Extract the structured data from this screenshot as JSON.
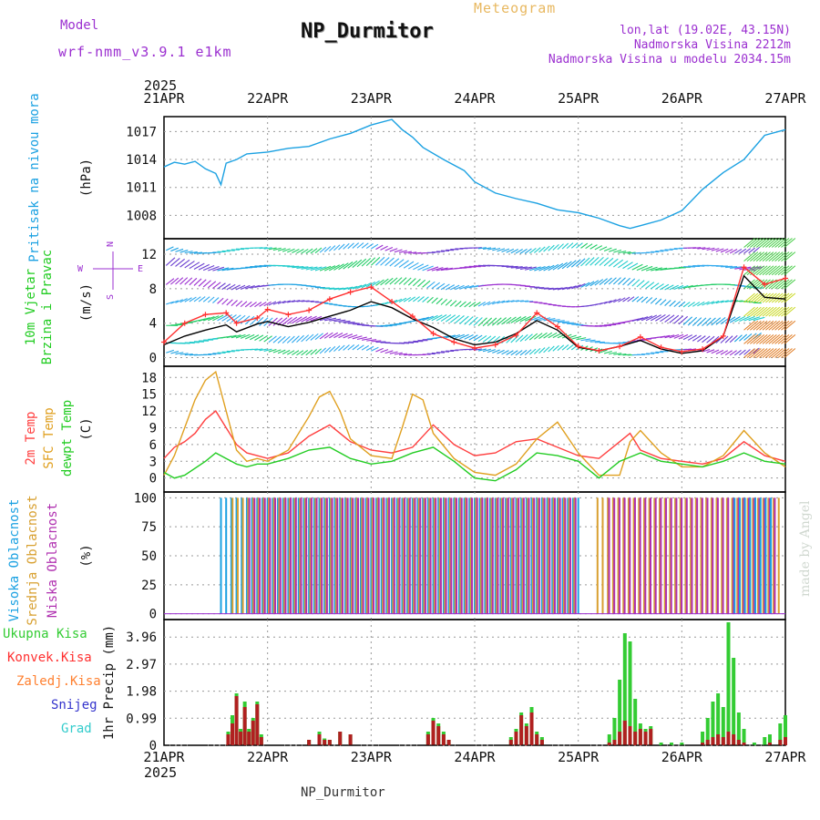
{
  "header": {
    "model_label": "Model",
    "model_value": "wrf-nmm_v3.9.1 e1km",
    "station": "NP_Durmitor",
    "meteogram": "Meteogram",
    "lonlat": "lon,lat (19.02E, 43.15N)",
    "elevation": "Nadmorska Visina 2212m",
    "elevation_model": "Nadmorska Visina u modelu 2034.15m"
  },
  "footer": {
    "station": "NP_Durmitor",
    "credit": "made by Angel"
  },
  "colors": {
    "pressure": "#1ba1e2",
    "wind_speed": "#000000",
    "gust": "#ff3030",
    "temp2m": "#ff4040",
    "sfc_temp": "#e0a020",
    "dewpt": "#22cc22",
    "cloud_high": "#1ba1e2",
    "cloud_mid": "#d8a030",
    "cloud_low": "#b030b0",
    "precip_total": "#33cc33",
    "precip_conv": "#b02020",
    "snow": "#3333cc",
    "hail": "#33cccc"
  },
  "chart_data": {
    "time_axis": {
      "year": "2025",
      "ticks": [
        "21APR",
        "22APR",
        "23APR",
        "24APR",
        "25APR",
        "26APR",
        "27APR"
      ],
      "days": 6
    },
    "panels": [
      {
        "id": "pressure",
        "type": "line",
        "ylabel": "Pritisak na nivou mora",
        "unit": "(hPa)",
        "ylim": [
          1005.5,
          1018.6
        ],
        "yticks": [
          1008,
          1011,
          1014,
          1017
        ],
        "series": [
          {
            "key": "pressure",
            "x": [
              0,
              0.1,
              0.2,
              0.3,
              0.4,
              0.5,
              0.55,
              0.6,
              0.7,
              0.8,
              1.0,
              1.2,
              1.4,
              1.6,
              1.8,
              2.0,
              2.2,
              2.3,
              2.4,
              2.5,
              2.7,
              2.9,
              3.0,
              3.2,
              3.4,
              3.6,
              3.8,
              4.0,
              4.2,
              4.4,
              4.5,
              4.6,
              4.8,
              5.0,
              5.2,
              5.4,
              5.6,
              5.8,
              6.0
            ],
            "y": [
              1013.2,
              1013.7,
              1013.5,
              1013.8,
              1013.0,
              1012.5,
              1011.3,
              1013.6,
              1014.0,
              1014.6,
              1014.8,
              1015.2,
              1015.4,
              1016.2,
              1016.8,
              1017.7,
              1018.3,
              1017.2,
              1016.4,
              1015.3,
              1014.0,
              1012.8,
              1011.6,
              1010.4,
              1009.8,
              1009.3,
              1008.6,
              1008.3,
              1007.7,
              1006.9,
              1006.6,
              1006.9,
              1007.5,
              1008.5,
              1010.8,
              1012.6,
              1014.0,
              1016.6,
              1017.2
            ]
          }
        ]
      },
      {
        "id": "wind",
        "type": "line",
        "ylabel": "10m Vjetar Brzina i Pravac",
        "unit": "(m/s)",
        "compass": [
          "N",
          "W",
          "E",
          "S"
        ],
        "ylim": [
          -1,
          13.8
        ],
        "yticks": [
          0,
          4,
          8,
          12
        ],
        "series": [
          {
            "key": "wind_speed",
            "x": [
              0,
              0.2,
              0.4,
              0.6,
              0.7,
              0.9,
              1.0,
              1.2,
              1.4,
              1.6,
              1.8,
              2.0,
              2.2,
              2.4,
              2.6,
              2.8,
              3.0,
              3.2,
              3.4,
              3.6,
              3.8,
              4.0,
              4.2,
              4.4,
              4.6,
              4.8,
              5.0,
              5.2,
              5.4,
              5.6,
              5.8,
              6.0
            ],
            "y": [
              1.5,
              2.5,
              3.2,
              3.8,
              3.0,
              3.9,
              4.2,
              3.6,
              4.1,
              4.8,
              5.5,
              6.5,
              5.8,
              4.5,
              3.5,
              2.2,
              1.5,
              1.8,
              2.8,
              4.3,
              3.2,
              1.2,
              0.8,
              1.3,
              2.0,
              1.0,
              0.5,
              0.8,
              2.5,
              9.5,
              7.0,
              6.8
            ]
          },
          {
            "key": "gust",
            "marker": "+",
            "x": [
              0,
              0.2,
              0.4,
              0.6,
              0.7,
              0.9,
              1.0,
              1.2,
              1.4,
              1.6,
              1.8,
              2.0,
              2.2,
              2.4,
              2.6,
              2.8,
              3.0,
              3.2,
              3.4,
              3.6,
              3.8,
              4.0,
              4.2,
              4.4,
              4.6,
              4.8,
              5.0,
              5.2,
              5.4,
              5.6,
              5.8,
              6.0
            ],
            "y": [
              1.8,
              4.0,
              5.0,
              5.2,
              4.0,
              4.6,
              5.6,
              5.0,
              5.5,
              6.8,
              7.6,
              8.2,
              6.5,
              4.8,
              2.8,
              1.8,
              1.1,
              1.5,
              2.6,
              5.2,
              3.6,
              1.3,
              0.8,
              1.3,
              2.4,
              1.2,
              0.7,
              1.0,
              2.5,
              10.5,
              8.5,
              9.2
            ]
          }
        ]
      },
      {
        "id": "temperature",
        "type": "line",
        "ylabel": "2m Temp",
        "ylabel2": "SFC Temp",
        "ylabel3": "dewpt Temp",
        "unit": "(C)",
        "ylim": [
          -2.5,
          20
        ],
        "yticks": [
          0,
          3,
          6,
          9,
          12,
          15,
          18
        ],
        "series": [
          {
            "key": "temp2m",
            "x": [
              0,
              0.1,
              0.2,
              0.3,
              0.4,
              0.5,
              0.6,
              0.7,
              0.8,
              0.9,
              1.0,
              1.2,
              1.4,
              1.6,
              1.8,
              2.0,
              2.2,
              2.4,
              2.5,
              2.6,
              2.8,
              3.0,
              3.2,
              3.4,
              3.6,
              3.8,
              4.0,
              4.2,
              4.4,
              4.5,
              4.6,
              4.8,
              5.0,
              5.2,
              5.4,
              5.6,
              5.8,
              6.0
            ],
            "y": [
              3.5,
              5.5,
              6.5,
              8.0,
              10.5,
              12.0,
              9.0,
              6.0,
              4.5,
              4.0,
              3.5,
              4.5,
              7.5,
              9.5,
              6.5,
              5.0,
              4.5,
              5.5,
              7.5,
              9.5,
              6.0,
              4.0,
              4.5,
              6.5,
              7.0,
              5.5,
              4.0,
              3.5,
              6.5,
              8.0,
              5.0,
              3.5,
              3.0,
              2.5,
              3.5,
              6.5,
              4.0,
              3.0
            ]
          },
          {
            "key": "sfc_temp",
            "x": [
              0,
              0.1,
              0.2,
              0.3,
              0.4,
              0.5,
              0.6,
              0.7,
              0.8,
              0.9,
              1.0,
              1.2,
              1.4,
              1.5,
              1.6,
              1.7,
              1.8,
              2.0,
              2.2,
              2.3,
              2.4,
              2.5,
              2.6,
              2.8,
              3.0,
              3.2,
              3.4,
              3.6,
              3.8,
              4.0,
              4.2,
              4.4,
              4.5,
              4.6,
              4.8,
              5.0,
              5.2,
              5.4,
              5.6,
              5.8,
              6.0
            ],
            "y": [
              0.5,
              4.0,
              9.0,
              14.0,
              17.5,
              19.0,
              12.0,
              5.0,
              3.0,
              3.5,
              3.0,
              5.0,
              11.0,
              14.5,
              15.5,
              12.0,
              7.0,
              4.0,
              3.5,
              9.0,
              15.0,
              14.0,
              8.0,
              3.5,
              1.0,
              0.5,
              2.5,
              7.0,
              10.0,
              4.5,
              0.5,
              0.5,
              6.5,
              8.5,
              4.5,
              2.0,
              2.0,
              4.0,
              8.5,
              4.5,
              2.0
            ]
          },
          {
            "key": "dewpt",
            "x": [
              0,
              0.1,
              0.2,
              0.4,
              0.5,
              0.6,
              0.7,
              0.8,
              0.9,
              1.0,
              1.2,
              1.4,
              1.6,
              1.8,
              2.0,
              2.2,
              2.4,
              2.6,
              2.8,
              3.0,
              3.2,
              3.4,
              3.6,
              3.8,
              4.0,
              4.2,
              4.4,
              4.6,
              4.8,
              5.0,
              5.2,
              5.4,
              5.6,
              5.8,
              6.0
            ],
            "y": [
              1.0,
              0.0,
              0.5,
              3.0,
              4.5,
              3.5,
              2.5,
              2.0,
              2.5,
              2.5,
              3.5,
              5.0,
              5.5,
              3.5,
              2.5,
              3.0,
              4.5,
              5.5,
              3.0,
              0.0,
              -0.5,
              1.5,
              4.5,
              4.0,
              3.0,
              0.0,
              3.0,
              4.5,
              3.0,
              2.5,
              2.0,
              3.0,
              4.5,
              3.0,
              2.5
            ]
          }
        ]
      },
      {
        "id": "clouds",
        "type": "bar",
        "ylabel": "Visoka Oblacnost",
        "ylabel2": "Srednja Oblacnost",
        "ylabel3": "Niska Oblacnost",
        "unit": "(%)",
        "ylim": [
          -5,
          105
        ],
        "yticks": [
          0,
          25,
          50,
          75,
          100
        ],
        "segments": [
          {
            "key": "cloud_high",
            "from": 0.55,
            "to": 4.0,
            "value": 100
          },
          {
            "key": "cloud_mid",
            "from": 0.65,
            "to": 4.0,
            "value": 100
          },
          {
            "key": "cloud_low",
            "from": 0.8,
            "to": 4.0,
            "value": 100
          },
          {
            "key": "cloud_mid",
            "from": 4.15,
            "to": 5.95,
            "value": 100
          },
          {
            "key": "cloud_low",
            "from": 4.25,
            "to": 5.9,
            "value": 100
          },
          {
            "key": "cloud_high",
            "from": 5.45,
            "to": 5.9,
            "value": 100
          }
        ]
      },
      {
        "id": "precip",
        "type": "bar",
        "ylabel": "1hr Precip (mm)",
        "legend": [
          "Ukupna Kisa",
          "Konvek.Kisa",
          "Zaledj.Kisa",
          "Snijeg",
          "Grad"
        ],
        "ylim": [
          0,
          4.6
        ],
        "yticks": [
          0,
          0.99,
          1.98,
          2.97,
          3.96
        ],
        "ytick_labels": [
          "0",
          "0.99",
          "1.98",
          "2.97",
          "3.96"
        ],
        "bars": [
          {
            "x": 0.62,
            "total": 0.5,
            "conv": 0.4
          },
          {
            "x": 0.66,
            "total": 1.1,
            "conv": 0.8
          },
          {
            "x": 0.7,
            "total": 1.9,
            "conv": 1.8
          },
          {
            "x": 0.74,
            "total": 0.6,
            "conv": 0.5
          },
          {
            "x": 0.78,
            "total": 1.6,
            "conv": 1.4
          },
          {
            "x": 0.82,
            "total": 0.6,
            "conv": 0.5
          },
          {
            "x": 0.86,
            "total": 1.0,
            "conv": 0.9
          },
          {
            "x": 0.9,
            "total": 1.6,
            "conv": 1.5
          },
          {
            "x": 0.94,
            "total": 0.4,
            "conv": 0.3
          },
          {
            "x": 1.4,
            "total": 0.2,
            "conv": 0.2
          },
          {
            "x": 1.5,
            "total": 0.5,
            "conv": 0.4
          },
          {
            "x": 1.55,
            "total": 0.25,
            "conv": 0.2
          },
          {
            "x": 1.6,
            "total": 0.2,
            "conv": 0.2
          },
          {
            "x": 1.7,
            "total": 0.5,
            "conv": 0.5
          },
          {
            "x": 1.8,
            "total": 0.4,
            "conv": 0.4
          },
          {
            "x": 2.55,
            "total": 0.5,
            "conv": 0.4
          },
          {
            "x": 2.6,
            "total": 1.0,
            "conv": 0.9
          },
          {
            "x": 2.65,
            "total": 0.8,
            "conv": 0.7
          },
          {
            "x": 2.7,
            "total": 0.5,
            "conv": 0.4
          },
          {
            "x": 2.75,
            "total": 0.2,
            "conv": 0.2
          },
          {
            "x": 3.35,
            "total": 0.3,
            "conv": 0.2
          },
          {
            "x": 3.4,
            "total": 0.6,
            "conv": 0.5
          },
          {
            "x": 3.45,
            "total": 1.2,
            "conv": 1.1
          },
          {
            "x": 3.5,
            "total": 0.8,
            "conv": 0.7
          },
          {
            "x": 3.55,
            "total": 1.4,
            "conv": 1.2
          },
          {
            "x": 3.6,
            "total": 0.5,
            "conv": 0.4
          },
          {
            "x": 3.65,
            "total": 0.3,
            "conv": 0.2
          },
          {
            "x": 4.3,
            "total": 0.4,
            "conv": 0.1
          },
          {
            "x": 4.35,
            "total": 1.0,
            "conv": 0.2
          },
          {
            "x": 4.4,
            "total": 2.4,
            "conv": 0.5
          },
          {
            "x": 4.45,
            "total": 4.1,
            "conv": 0.9
          },
          {
            "x": 4.5,
            "total": 3.8,
            "conv": 0.7
          },
          {
            "x": 4.55,
            "total": 1.7,
            "conv": 0.5
          },
          {
            "x": 4.6,
            "total": 0.8,
            "conv": 0.6
          },
          {
            "x": 4.65,
            "total": 0.6,
            "conv": 0.5
          },
          {
            "x": 4.7,
            "total": 0.7,
            "conv": 0.6
          },
          {
            "x": 4.8,
            "total": 0.1,
            "conv": 0.0
          },
          {
            "x": 4.9,
            "total": 0.1,
            "conv": 0.0
          },
          {
            "x": 5.0,
            "total": 0.1,
            "conv": 0.0
          },
          {
            "x": 5.2,
            "total": 0.5,
            "conv": 0.1
          },
          {
            "x": 5.25,
            "total": 1.0,
            "conv": 0.2
          },
          {
            "x": 5.3,
            "total": 1.6,
            "conv": 0.3
          },
          {
            "x": 5.35,
            "total": 1.9,
            "conv": 0.4
          },
          {
            "x": 5.4,
            "total": 1.4,
            "conv": 0.3
          },
          {
            "x": 5.45,
            "total": 4.5,
            "conv": 0.5
          },
          {
            "x": 5.5,
            "total": 3.2,
            "conv": 0.4
          },
          {
            "x": 5.55,
            "total": 1.2,
            "conv": 0.2
          },
          {
            "x": 5.6,
            "total": 0.6,
            "conv": 0.1
          },
          {
            "x": 5.7,
            "total": 0.1,
            "conv": 0.0
          },
          {
            "x": 5.8,
            "total": 0.3,
            "conv": 0.0
          },
          {
            "x": 5.85,
            "total": 0.4,
            "conv": 0.1
          },
          {
            "x": 5.95,
            "total": 0.8,
            "conv": 0.2
          },
          {
            "x": 6.0,
            "total": 1.1,
            "conv": 0.3
          }
        ]
      }
    ]
  }
}
